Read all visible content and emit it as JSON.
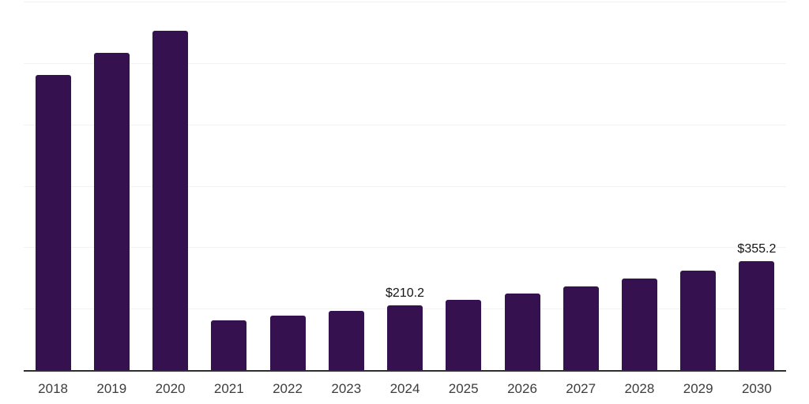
{
  "chart_data": {
    "type": "bar",
    "title": "",
    "xlabel": "",
    "ylabel": "",
    "categories": [
      "2018",
      "2019",
      "2020",
      "2021",
      "2022",
      "2023",
      "2024",
      "2025",
      "2026",
      "2027",
      "2028",
      "2029",
      "2030"
    ],
    "values": [
      960,
      1032,
      1105,
      161.8,
      176.5,
      192.6,
      210.2,
      229.3,
      250.2,
      273.0,
      297.9,
      325.0,
      355.2
    ],
    "bar_labels": [
      {
        "category": "2024",
        "text": "$210.2"
      },
      {
        "category": "2030",
        "text": "$355.2"
      }
    ],
    "ylim": [
      0,
      1200
    ],
    "gridline_step": 200,
    "grid": "horizontal",
    "legend": "none",
    "y_axis_labels_visible": false,
    "colors": {
      "bar": "#35114F",
      "gridline": "#f2f2f2",
      "axis_line": "#2e2e2e",
      "bar_label_text": "#141414",
      "x_tick_text": "#3d3d3d",
      "background": "#ffffff"
    }
  }
}
